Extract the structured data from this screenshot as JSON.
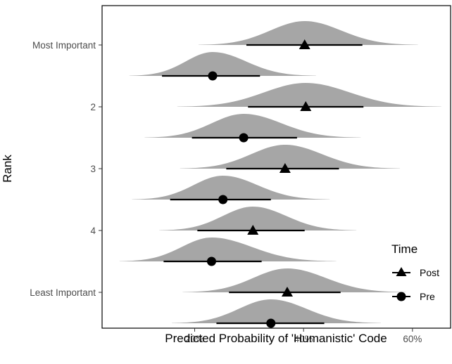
{
  "chart_data": {
    "type": "density-interval",
    "xlabel": "Predicted Probability of 'Humanistic' Code",
    "ylabel": "Rank",
    "xlim": [
      3,
      67
    ],
    "xticks": [
      20,
      40,
      60
    ],
    "xtick_labels": [
      "20%",
      "40%",
      "60%"
    ],
    "ranks": [
      "Most Important",
      "2",
      "3",
      "4",
      "Least Important"
    ],
    "legend": {
      "title": "Time",
      "items": [
        {
          "name": "Post",
          "shape": "triangle"
        },
        {
          "name": "Pre",
          "shape": "circle"
        }
      ]
    },
    "colors": {
      "density": "#a6a6a6",
      "interval": "#000000",
      "panel_border": "#000000"
    },
    "series": [
      {
        "rank": "Most Important",
        "time": "Post",
        "point": 40.2,
        "lower": 29.5,
        "upper": 50.8,
        "min": 20.7,
        "max": 61.0
      },
      {
        "rank": "Most Important",
        "time": "Pre",
        "point": 23.3,
        "lower": 14.0,
        "upper": 32.0,
        "min": 8.0,
        "max": 42.3
      },
      {
        "rank": "2",
        "time": "Post",
        "point": 40.4,
        "lower": 29.8,
        "upper": 51.0,
        "min": 16.8,
        "max": 65.3
      },
      {
        "rank": "2",
        "time": "Pre",
        "point": 29.0,
        "lower": 19.5,
        "upper": 38.8,
        "min": 10.8,
        "max": 50.5
      },
      {
        "rank": "3",
        "time": "Post",
        "point": 36.6,
        "lower": 25.8,
        "upper": 46.5,
        "min": 17.3,
        "max": 57.7
      },
      {
        "rank": "3",
        "time": "Pre",
        "point": 25.2,
        "lower": 15.5,
        "upper": 34.0,
        "min": 8.5,
        "max": 44.8
      },
      {
        "rank": "4",
        "time": "Post",
        "point": 30.7,
        "lower": 20.5,
        "upper": 40.2,
        "min": 13.5,
        "max": 49.7
      },
      {
        "rank": "4",
        "time": "Pre",
        "point": 23.1,
        "lower": 14.3,
        "upper": 32.3,
        "min": 6.2,
        "max": 46.0
      },
      {
        "rank": "Least Important",
        "time": "Post",
        "point": 37.0,
        "lower": 26.3,
        "upper": 46.8,
        "min": 17.8,
        "max": 58.8
      },
      {
        "rank": "Least Important",
        "time": "Pre",
        "point": 34.0,
        "lower": 24.0,
        "upper": 43.8,
        "min": 15.8,
        "max": 54.2
      }
    ]
  }
}
